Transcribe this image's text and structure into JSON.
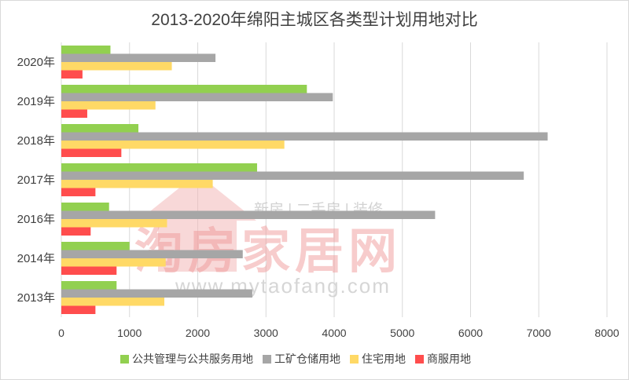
{
  "chart_data": {
    "type": "bar",
    "orientation": "horizontal",
    "title": "2013-2020年绵阳主城区各类型计划用地对比",
    "categories": [
      "2020年",
      "2019年",
      "2018年",
      "2017年",
      "2016年",
      "2014年",
      "2013年"
    ],
    "series": [
      {
        "name": "公共管理与公共服务用地",
        "color": "#92d050",
        "values": [
          720,
          3600,
          1130,
          2870,
          700,
          1000,
          810
        ]
      },
      {
        "name": "工矿仓储用地",
        "color": "#a6a6a6",
        "values": [
          2260,
          3980,
          7130,
          6780,
          5480,
          2660,
          2800
        ]
      },
      {
        "name": "住宅用地",
        "color": "#ffd966",
        "values": [
          1620,
          1380,
          3270,
          2220,
          1550,
          1530,
          1510
        ]
      },
      {
        "name": "商服用地",
        "color": "#ff4d4d",
        "values": [
          310,
          380,
          880,
          500,
          430,
          810,
          500
        ]
      }
    ],
    "xlim": [
      0,
      8000
    ],
    "xticks": [
      0,
      1000,
      2000,
      3000,
      4000,
      5000,
      6000,
      7000,
      8000
    ],
    "grid": true,
    "legend_position": "bottom"
  },
  "watermark": {
    "tagline": "新房 | 二手房 | 装修",
    "brand": "淘房家居网",
    "url": "www.mytaofang.com"
  }
}
